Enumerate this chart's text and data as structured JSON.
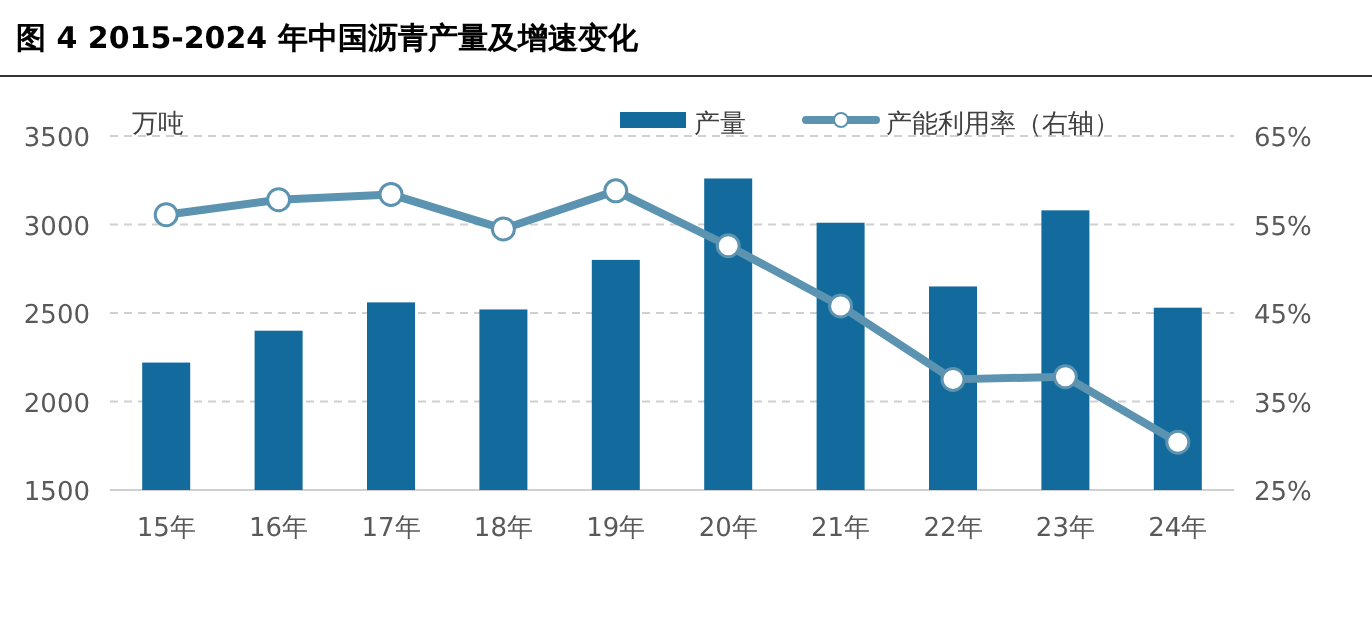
{
  "chart_data": {
    "type": "bar",
    "title": "图 4 2015-2024 年中国沥青产量及增速变化",
    "ylabel": "万吨",
    "categories": [
      "15年",
      "16年",
      "17年",
      "18年",
      "19年",
      "20年",
      "21年",
      "22年",
      "23年",
      "24年"
    ],
    "series": [
      {
        "name": "产量",
        "color": "#126b9c",
        "values": [
          2220,
          2400,
          2560,
          2520,
          2800,
          3260,
          3010,
          2650,
          3080,
          2530
        ]
      },
      {
        "name": "产能利用率（右轴）",
        "type": "line",
        "axis": "y2",
        "color": "#5b93b0",
        "marker": "circle",
        "values": [
          56.1,
          57.8,
          58.4,
          54.5,
          58.8,
          52.6,
          45.8,
          37.5,
          37.8,
          30.4
        ]
      }
    ],
    "ylim": [
      1500,
      3500
    ],
    "yticks": [
      1500,
      2000,
      2500,
      3000,
      3500
    ],
    "y2lim": [
      25,
      65
    ],
    "y2ticks": [
      {
        "value": 25,
        "label": "25%"
      },
      {
        "value": 35,
        "label": "35%"
      },
      {
        "value": 45,
        "label": "45%"
      },
      {
        "value": 55,
        "label": "55%"
      },
      {
        "value": 65,
        "label": "65%"
      }
    ],
    "grid": "y",
    "legend": "top"
  }
}
